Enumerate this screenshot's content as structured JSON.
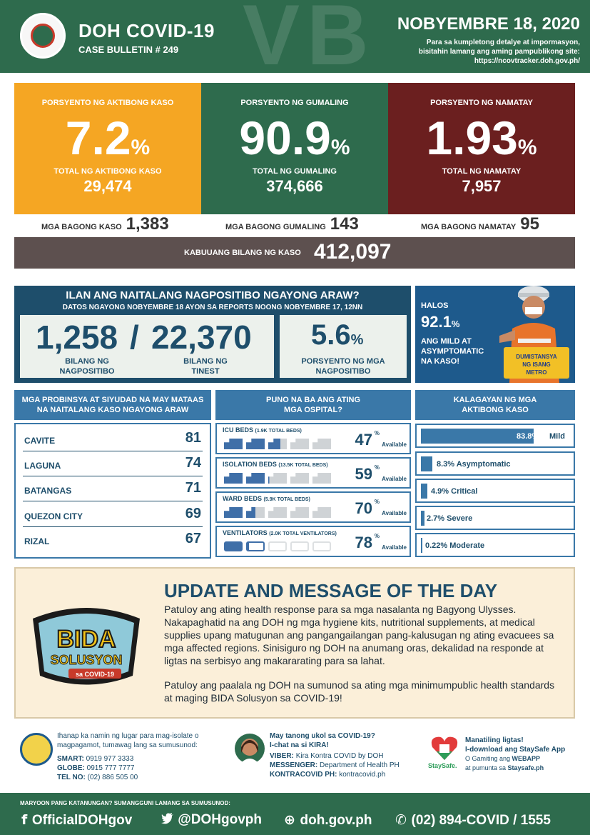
{
  "header": {
    "title": "DOH COVID-19",
    "bulletin": "CASE BULLETIN # 249",
    "date": "NOBYEMBRE 18, 2020",
    "sub_line1": "Para sa kumpletong detalye at impormasyon,",
    "sub_line2": "bisitahin lamang ang aming pampublikong site:",
    "sub_line3": "https://ncovtracker.doh.gov.ph/"
  },
  "stats": {
    "active": {
      "label": "PORSYENTO NG AKTIBONG KASO",
      "percent": "7.2",
      "pct_sign": "%",
      "total_label": "TOTAL NG AKTIBONG KASO",
      "total": "29,474",
      "new_label": "MGA BAGONG KASO",
      "new": "1,383"
    },
    "recovered": {
      "label": "PORSYENTO NG GUMALING",
      "percent": "90.9",
      "pct_sign": "%",
      "total_label": "TOTAL NG GUMALING",
      "total": "374,666",
      "new_label": "MGA BAGONG GUMALING",
      "new": "143"
    },
    "deaths": {
      "label": "PORSYENTO NG NAMATAY",
      "percent": "1.93",
      "pct_sign": "%",
      "total_label": "TOTAL NG NAMATAY",
      "total": "7,957",
      "new_label": "MGA BAGONG NAMATAY",
      "new": "95"
    },
    "total_label": "KABUUANG BILANG NG KASO",
    "total": "412,097"
  },
  "positive": {
    "question": "ILAN ANG NAITALANG NAGPOSITIBO NGAYONG ARAW?",
    "subtitle": "DATOS NGAYONG NOBYEMBRE 18 AYON SA REPORTS NOONG NOBYEMBRE 17, 12NN",
    "positives": "1,258",
    "slash": "/",
    "tests": "22,370",
    "positives_label_1": "BILANG NG",
    "positives_label_2": "NAGPOSITIBO",
    "tests_label_1": "BILANG NG",
    "tests_label_2": "TINEST",
    "rate": "5.6",
    "rate_sign": "%",
    "rate_label_1": "PORSYENTO NG MGA",
    "rate_label_2": "NAGPOSITIBO"
  },
  "halos": {
    "line1": "HALOS",
    "percent": "92.1",
    "pct_sign": "%",
    "line2": "ANG MILD AT",
    "line3": "ASYMPTOMATIC",
    "line4": "NA KASO!",
    "sign_text_1": "DUMISTANSYA",
    "sign_text_2": "NG ISANG",
    "sign_text_3": "METRO"
  },
  "provinces": {
    "header_1": "MGA PROBINSYA AT SIYUDAD NA MAY MATAAS",
    "header_2": "NA NAITALANG KASO NGAYONG ARAW",
    "rows": [
      {
        "name": "CAVITE",
        "count": "81"
      },
      {
        "name": "LAGUNA",
        "count": "74"
      },
      {
        "name": "BATANGAS",
        "count": "71"
      },
      {
        "name": "QUEZON CITY",
        "count": "69"
      },
      {
        "name": "RIZAL",
        "count": "67"
      }
    ]
  },
  "hospitals": {
    "header_1": "PUNO NA BA ANG ATING",
    "header_2": "MGA OSPITAL?",
    "available": "Available",
    "pct_sign": "%",
    "items": [
      {
        "name": "ICU BEDS",
        "note": "(1.9K TOTAL BEDS)",
        "percent": "47",
        "available_fraction": 0.47
      },
      {
        "name": "ISOLATION BEDS",
        "note": "(13.5K TOTAL BEDS)",
        "percent": "59",
        "available_fraction": 0.59
      },
      {
        "name": "WARD BEDS",
        "note": "(5.9K TOTAL BEDS)",
        "percent": "70",
        "available_fraction": 0.7
      },
      {
        "name": "VENTILATORS",
        "note": "(2.0K TOTAL VENTILATORS)",
        "percent": "78",
        "available_fraction": 0.78
      }
    ]
  },
  "status": {
    "header_1": "KALAGAYAN NG MGA",
    "header_2": "AKTIBONG KASO",
    "items": [
      {
        "label": "83.8%",
        "suffix": "Mild",
        "value": 83.8
      },
      {
        "label": "8.3% Asymptomatic",
        "value": 8.3
      },
      {
        "label": "4.9% Critical",
        "value": 4.9
      },
      {
        "label": "2.7% Severe",
        "value": 2.7
      },
      {
        "label": "0.22% Moderate",
        "value": 0.22
      }
    ]
  },
  "update": {
    "title": "UPDATE AND MESSAGE OF THE DAY",
    "p1": "Patuloy ang ating health response para sa mga nasalanta ng Bagyong Ulysses. Nakapaghatid na ang DOH ng mga hygiene kits, nutritional supplements, at medical supplies upang matugunan ang pangangailangan pang-kalusugan ng ating evacuees sa mga affected regions. Sinisiguro ng DOH na anumang oras, dekalidad na responde at ligtas na serbisyo ang makararating para sa lahat.",
    "p2": "Patuloy ang paalala ng DOH na sumunod sa ating mga minimumpublic health standards at maging BIDA Solusyon sa COVID-19!",
    "bida_1": "BIDA",
    "bida_2": "SOLUSYON",
    "bida_3": "sa COVID-19"
  },
  "contacts": {
    "isolate_1": "Ihanap ka namin ng lugar para mag-isolate o",
    "isolate_2": "magpagamot, tumawag lang sa sumusunod:",
    "smart_label": "SMART:",
    "smart": "0919 977 3333",
    "globe_label": "GLOBE:",
    "globe": "0915 777 7777",
    "tel_label": "TEL NO:",
    "tel": "(02) 886 505 00",
    "kira_1": "May tanong ukol sa COVID-19?",
    "kira_2": "I-chat na si KIRA!",
    "viber_label": "VIBER:",
    "viber": "Kira Kontra COVID by DOH",
    "messenger_label": "MESSENGER:",
    "messenger": "Department of Health PH",
    "kontracovid_label": "KONTRACOVID PH:",
    "kontracovid": "kontracovid.ph",
    "staysafe_1": "Manatiling ligtas!",
    "staysafe_2": "I-download ang StaySafe App",
    "staysafe_3_a": "O Gamiting ang ",
    "staysafe_3_b": "WEBAPP",
    "staysafe_4_a": "at pumunta sa ",
    "staysafe_4_b": "Staysafe.ph",
    "staysafe_logo": "StaySafe."
  },
  "footer": {
    "label": "MARYOON PANG KATANUNGAN? SUMANGGUNI LAMANG SA SUMUSUNOD:",
    "facebook": "OfficialDOHgov",
    "twitter": "@DOHgovph",
    "website": "doh.gov.ph",
    "phone": "(02) 894-COVID",
    "sep": "/",
    "hotline": "1555"
  },
  "colors": {
    "green": "#2e6b4d",
    "orange": "#f5a623",
    "maroon": "#6b1f1f",
    "navy": "#1e4e6b",
    "blue": "#3a78a8"
  }
}
